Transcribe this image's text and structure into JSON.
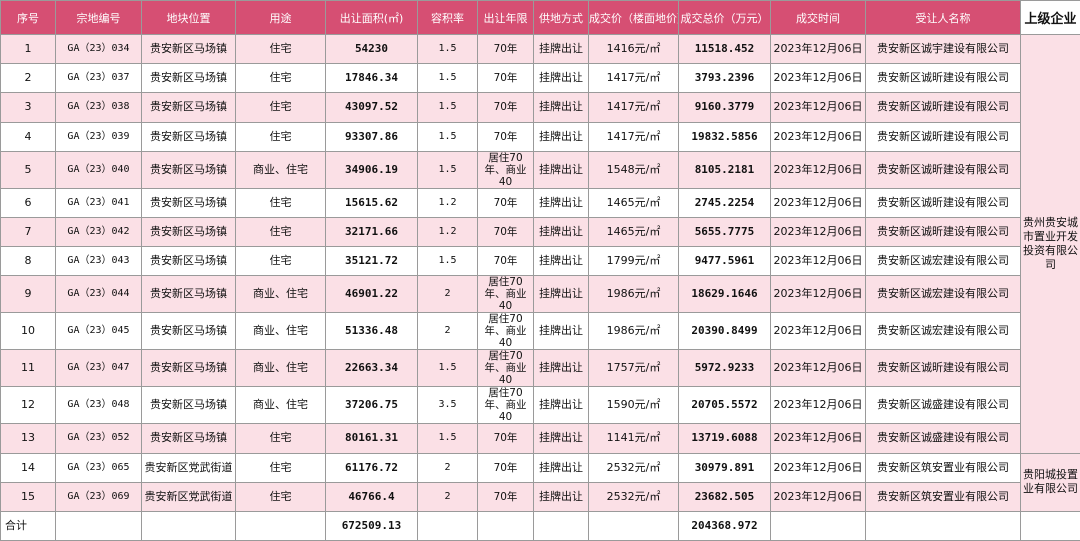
{
  "headers": {
    "no": "序号",
    "code": "宗地编号",
    "location": "地块位置",
    "usage": "用途",
    "area": "出让面积(㎡)",
    "far": "容积率",
    "term": "出让年限",
    "method": "供地方式",
    "unit_price": "成交价（楼面地价）",
    "total_price": "成交总价（万元）",
    "date": "成交时间",
    "assignee": "受让人名称",
    "parent": "上级企业"
  },
  "rows": [
    {
      "no": "1",
      "code": "GA（23）034",
      "location": "贵安新区马场镇",
      "usage": "住宅",
      "area": "54230",
      "far": "1.5",
      "term": "70年",
      "method": "挂牌出让",
      "unit_price": "1416元/㎡",
      "total_price": "11518.452",
      "date": "2023年12月06日",
      "assignee": "贵安新区诚宇建设有限公司"
    },
    {
      "no": "2",
      "code": "GA（23）037",
      "location": "贵安新区马场镇",
      "usage": "住宅",
      "area": "17846.34",
      "far": "1.5",
      "term": "70年",
      "method": "挂牌出让",
      "unit_price": "1417元/㎡",
      "total_price": "3793.2396",
      "date": "2023年12月06日",
      "assignee": "贵安新区诚昕建设有限公司"
    },
    {
      "no": "3",
      "code": "GA（23）038",
      "location": "贵安新区马场镇",
      "usage": "住宅",
      "area": "43097.52",
      "far": "1.5",
      "term": "70年",
      "method": "挂牌出让",
      "unit_price": "1417元/㎡",
      "total_price": "9160.3779",
      "date": "2023年12月06日",
      "assignee": "贵安新区诚昕建设有限公司"
    },
    {
      "no": "4",
      "code": "GA（23）039",
      "location": "贵安新区马场镇",
      "usage": "住宅",
      "area": "93307.86",
      "far": "1.5",
      "term": "70年",
      "method": "挂牌出让",
      "unit_price": "1417元/㎡",
      "total_price": "19832.5856",
      "date": "2023年12月06日",
      "assignee": "贵安新区诚昕建设有限公司"
    },
    {
      "no": "5",
      "code": "GA（23）040",
      "location": "贵安新区马场镇",
      "usage": "商业、住宅",
      "area": "34906.19",
      "far": "1.5",
      "term": "居住70年、商业40",
      "method": "挂牌出让",
      "unit_price": "1548元/㎡",
      "total_price": "8105.2181",
      "date": "2023年12月06日",
      "assignee": "贵安新区诚昕建设有限公司"
    },
    {
      "no": "6",
      "code": "GA（23）041",
      "location": "贵安新区马场镇",
      "usage": "住宅",
      "area": "15615.62",
      "far": "1.2",
      "term": "70年",
      "method": "挂牌出让",
      "unit_price": "1465元/㎡",
      "total_price": "2745.2254",
      "date": "2023年12月06日",
      "assignee": "贵安新区诚昕建设有限公司"
    },
    {
      "no": "7",
      "code": "GA（23）042",
      "location": "贵安新区马场镇",
      "usage": "住宅",
      "area": "32171.66",
      "far": "1.2",
      "term": "70年",
      "method": "挂牌出让",
      "unit_price": "1465元/㎡",
      "total_price": "5655.7775",
      "date": "2023年12月06日",
      "assignee": "贵安新区诚昕建设有限公司"
    },
    {
      "no": "8",
      "code": "GA（23）043",
      "location": "贵安新区马场镇",
      "usage": "住宅",
      "area": "35121.72",
      "far": "1.5",
      "term": "70年",
      "method": "挂牌出让",
      "unit_price": "1799元/㎡",
      "total_price": "9477.5961",
      "date": "2023年12月06日",
      "assignee": "贵安新区诚宏建设有限公司"
    },
    {
      "no": "9",
      "code": "GA（23）044",
      "location": "贵安新区马场镇",
      "usage": "商业、住宅",
      "area": "46901.22",
      "far": "2",
      "term": "居住70年、商业40",
      "method": "挂牌出让",
      "unit_price": "1986元/㎡",
      "total_price": "18629.1646",
      "date": "2023年12月06日",
      "assignee": "贵安新区诚宏建设有限公司"
    },
    {
      "no": "10",
      "code": "GA（23）045",
      "location": "贵安新区马场镇",
      "usage": "商业、住宅",
      "area": "51336.48",
      "far": "2",
      "term": "居住70年、商业40",
      "method": "挂牌出让",
      "unit_price": "1986元/㎡",
      "total_price": "20390.8499",
      "date": "2023年12月06日",
      "assignee": "贵安新区诚宏建设有限公司"
    },
    {
      "no": "11",
      "code": "GA（23）047",
      "location": "贵安新区马场镇",
      "usage": "商业、住宅",
      "area": "22663.34",
      "far": "1.5",
      "term": "居住70年、商业40",
      "method": "挂牌出让",
      "unit_price": "1757元/㎡",
      "total_price": "5972.9233",
      "date": "2023年12月06日",
      "assignee": "贵安新区诚昕建设有限公司"
    },
    {
      "no": "12",
      "code": "GA（23）048",
      "location": "贵安新区马场镇",
      "usage": "商业、住宅",
      "area": "37206.75",
      "far": "3.5",
      "term": "居住70年、商业40",
      "method": "挂牌出让",
      "unit_price": "1590元/㎡",
      "total_price": "20705.5572",
      "date": "2023年12月06日",
      "assignee": "贵安新区诚盛建设有限公司"
    },
    {
      "no": "13",
      "code": "GA（23）052",
      "location": "贵安新区马场镇",
      "usage": "住宅",
      "area": "80161.31",
      "far": "1.5",
      "term": "70年",
      "method": "挂牌出让",
      "unit_price": "1141元/㎡",
      "total_price": "13719.6088",
      "date": "2023年12月06日",
      "assignee": "贵安新区诚盛建设有限公司"
    },
    {
      "no": "14",
      "code": "GA（23）065",
      "location": "贵安新区党武街道",
      "usage": "住宅",
      "area": "61176.72",
      "far": "2",
      "term": "70年",
      "method": "挂牌出让",
      "unit_price": "2532元/㎡",
      "total_price": "30979.891",
      "date": "2023年12月06日",
      "assignee": "贵安新区筑安置业有限公司"
    },
    {
      "no": "15",
      "code": "GA（23）069",
      "location": "贵安新区党武街道",
      "usage": "住宅",
      "area": "46766.4",
      "far": "2",
      "term": "70年",
      "method": "挂牌出让",
      "unit_price": "2532元/㎡",
      "total_price": "23682.505",
      "date": "2023年12月06日",
      "assignee": "贵安新区筑安置业有限公司"
    }
  ],
  "parents": {
    "group1": "贵州贵安城市置业开发投资有限公司",
    "group2": "贵阳城投置业有限公司"
  },
  "totals": {
    "label": "合计",
    "area": "672509.13",
    "total_price": "204368.972"
  },
  "colors": {
    "header_bg": "#d64f73",
    "row_pink": "#fbe0e6"
  }
}
